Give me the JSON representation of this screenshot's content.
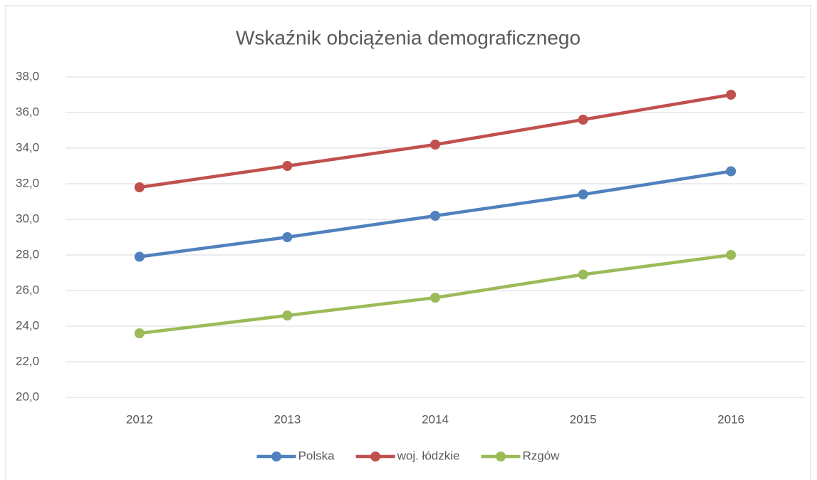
{
  "chart_data": {
    "type": "line",
    "title": "Wskaźnik obciążenia demograficznego",
    "categories": [
      "2012",
      "2013",
      "2014",
      "2015",
      "2016"
    ],
    "series": [
      {
        "name": "Polska",
        "color": "#4f81bd",
        "values": [
          27.9,
          29.0,
          30.2,
          31.4,
          32.7
        ]
      },
      {
        "name": "woj. łódzkie",
        "color": "#c0504d",
        "values": [
          31.8,
          33.0,
          34.2,
          35.6,
          37.0
        ]
      },
      {
        "name": "Rzgów",
        "color": "#9bbb59",
        "values": [
          23.6,
          24.6,
          25.6,
          26.9,
          28.0
        ]
      }
    ],
    "ylim": [
      20,
      38
    ],
    "yticks": [
      {
        "value": 20,
        "label": "20,0"
      },
      {
        "value": 22,
        "label": "22,0"
      },
      {
        "value": 24,
        "label": "24,0"
      },
      {
        "value": 26,
        "label": "26,0"
      },
      {
        "value": 28,
        "label": "28,0"
      },
      {
        "value": 30,
        "label": "30,0"
      },
      {
        "value": 32,
        "label": "32,0"
      },
      {
        "value": 34,
        "label": "34,0"
      },
      {
        "value": 36,
        "label": "36,0"
      },
      {
        "value": 38,
        "label": "38,0"
      }
    ],
    "grid": true,
    "legend": "bottom"
  }
}
